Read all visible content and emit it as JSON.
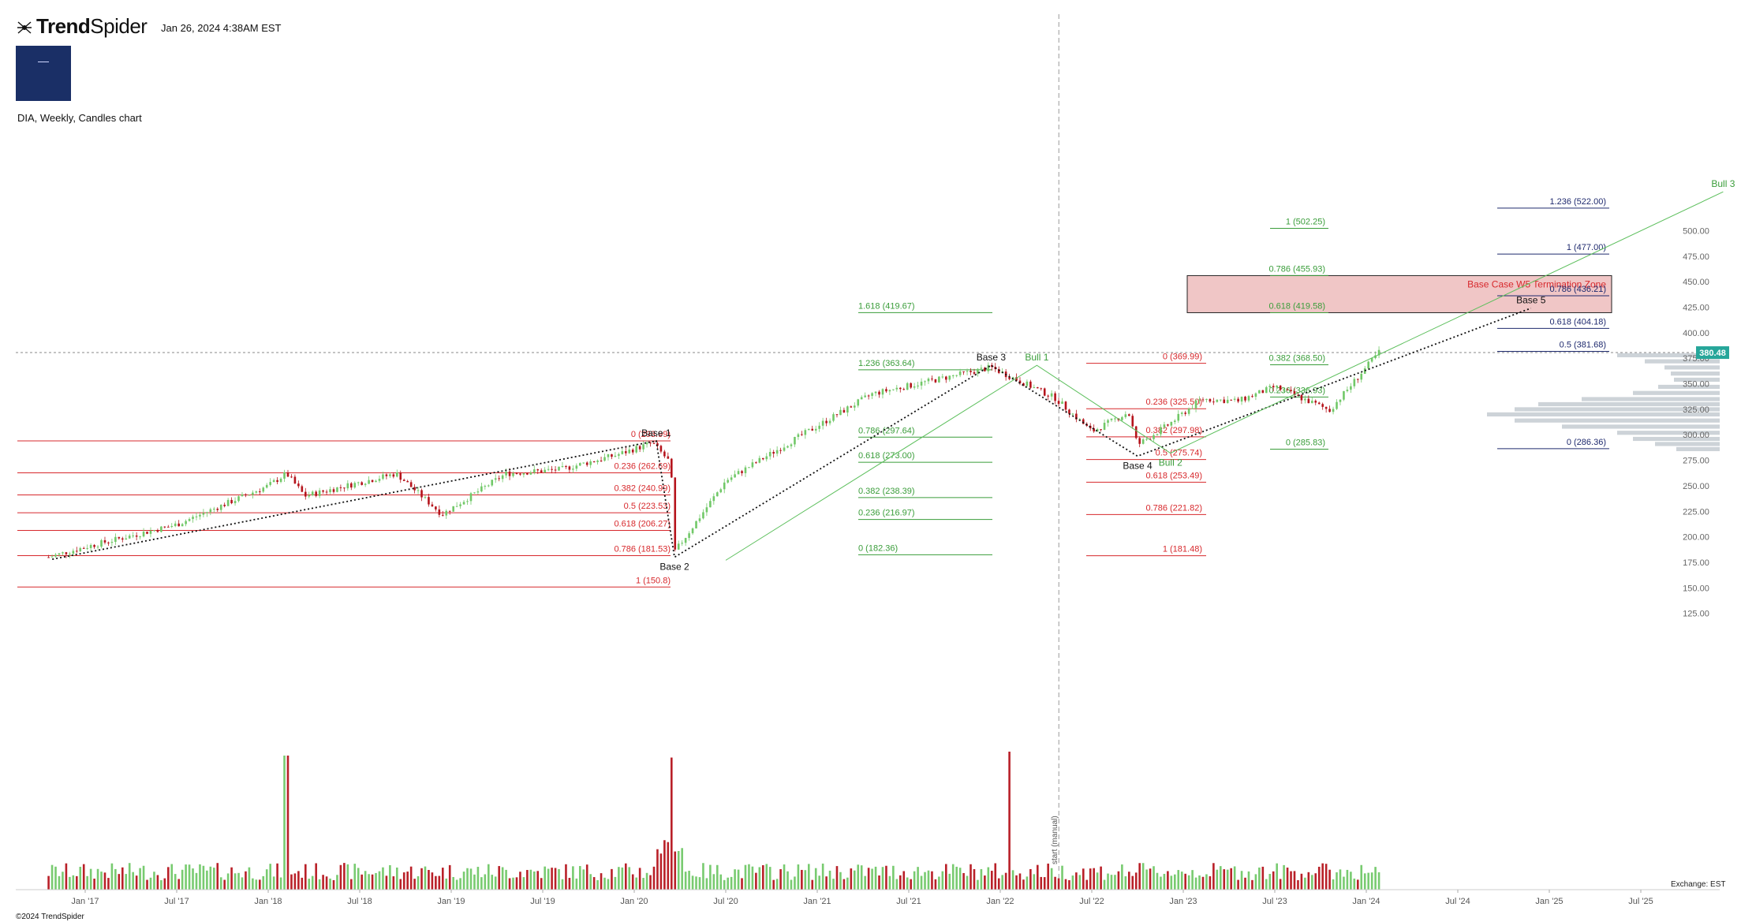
{
  "header": {
    "brand_bold": "Trend",
    "brand_rest": "Spider",
    "timestamp": "Jan 26, 2024 4:38AM EST",
    "logo_text": "",
    "symbol_line": "DIA, Weekly, Candles chart"
  },
  "footer": {
    "copyright": "©2024 TrendSpider",
    "exchange": "Exchange: EST"
  },
  "colors": {
    "up": "#71c868",
    "down": "#b5141c",
    "fib_red": "#d7282c",
    "fib_green": "#3a9d3a",
    "fib_navy": "#1f2a6e",
    "zone": "#f0c6c6",
    "price_tag": "#26a69a",
    "profile": "#cdd3d8"
  },
  "chart_data": {
    "type": "candlestick",
    "ticker": "DIA",
    "timeframe": "Weekly",
    "y_axis": {
      "min": 112,
      "max": 540,
      "ticks": [
        125,
        150,
        175,
        200,
        225,
        250,
        275,
        300,
        325,
        350,
        375,
        400,
        425,
        450,
        475,
        500
      ]
    },
    "x_axis": {
      "labels": [
        "Jan '17",
        "Jul '17",
        "Jan '18",
        "Jul '18",
        "Jan '19",
        "Jul '19",
        "Jan '20",
        "Jul '20",
        "Jan '21",
        "Jul '21",
        "Jan '22",
        "Jul '22",
        "Jan '23",
        "Jul '23",
        "Jan '24",
        "Jul '24",
        "Jan '25",
        "Jul '25"
      ]
    },
    "last_price": 380.48,
    "price_path": [
      [
        2016.8,
        180
      ],
      [
        2017.0,
        190
      ],
      [
        2017.5,
        212
      ],
      [
        2018.0,
        250
      ],
      [
        2018.1,
        262
      ],
      [
        2018.2,
        240
      ],
      [
        2018.7,
        262
      ],
      [
        2018.95,
        222
      ],
      [
        2019.3,
        262
      ],
      [
        2019.6,
        266
      ],
      [
        2019.9,
        280
      ],
      [
        2020.1,
        292
      ],
      [
        2020.2,
        272
      ],
      [
        2020.22,
        185
      ],
      [
        2020.5,
        255
      ],
      [
        2020.9,
        298
      ],
      [
        2021.3,
        340
      ],
      [
        2021.6,
        352
      ],
      [
        2021.95,
        366
      ],
      [
        2022.3,
        336
      ],
      [
        2022.5,
        303
      ],
      [
        2022.7,
        322
      ],
      [
        2022.75,
        290
      ],
      [
        2022.92,
        310
      ],
      [
        2023.1,
        335
      ],
      [
        2023.3,
        333
      ],
      [
        2023.5,
        347
      ],
      [
        2023.8,
        324
      ],
      [
        2024.07,
        381
      ]
    ],
    "volume_spikes": [
      [
        2018.1,
        "up",
        68
      ],
      [
        2020.2,
        "up",
        55
      ],
      [
        2022.05,
        "up",
        70
      ]
    ],
    "fib_red_left": [
      {
        "label": "0 (293.99)",
        "value": 293.99
      },
      {
        "label": "0.236 (262.69)",
        "value": 262.69
      },
      {
        "label": "0.382 (240.99)",
        "value": 240.99
      },
      {
        "label": "0.5 (223.53)",
        "value": 223.53
      },
      {
        "label": "0.618 (206.27)",
        "value": 206.27
      },
      {
        "label": "0.786 (181.53)",
        "value": 181.53
      },
      {
        "label": "1 (150.8)",
        "value": 150.8
      }
    ],
    "fib_green_mid": [
      {
        "label": "1.618 (419.67)",
        "value": 419.67
      },
      {
        "label": "1.236 (363.64)",
        "value": 363.64
      },
      {
        "label": "0.786 (297.64)",
        "value": 297.64
      },
      {
        "label": "0.618 (273.00)",
        "value": 273.0
      },
      {
        "label": "0.382 (238.39)",
        "value": 238.39
      },
      {
        "label": "0.236 (216.97)",
        "value": 216.97
      },
      {
        "label": "0 (182.36)",
        "value": 182.36
      }
    ],
    "fib_red_mid": [
      {
        "label": "0 (369.99)",
        "value": 369.99
      },
      {
        "label": "0.236 (325.50)",
        "value": 325.5
      },
      {
        "label": "0.382 (297.98)",
        "value": 297.98
      },
      {
        "label": "0.5 (275.74)",
        "value": 275.74
      },
      {
        "label": "0.618 (253.49)",
        "value": 253.49
      },
      {
        "label": "0.786 (221.82)",
        "value": 221.82
      },
      {
        "label": "1 (181.48)",
        "value": 181.48
      }
    ],
    "fib_green_right": [
      {
        "label": "1 (502.25)",
        "value": 502.25
      },
      {
        "label": "0.786 (455.93)",
        "value": 455.93
      },
      {
        "label": "0.618 (419.58)",
        "value": 419.58
      },
      {
        "label": "0.382 (368.50)",
        "value": 368.5
      },
      {
        "label": "0.236 (336.93)",
        "value": 336.93
      },
      {
        "label": "0 (285.83)",
        "value": 285.83
      }
    ],
    "fib_navy_right": [
      {
        "label": "1.236 (522.00)",
        "value": 522.0
      },
      {
        "label": "1 (477.00)",
        "value": 477.0
      },
      {
        "label": "0.786 (436.21)",
        "value": 436.21
      },
      {
        "label": "0.618 (404.18)",
        "value": 404.18
      },
      {
        "label": "0.5 (381.68)",
        "value": 381.68
      },
      {
        "label": "0 (286.36)",
        "value": 286.36
      }
    ],
    "zone": {
      "label": "Base Case W5 Termination Zone",
      "low": 419.58,
      "high": 455.93
    },
    "wave_labels": [
      {
        "label": "Base 1",
        "date": 2020.12,
        "price": 294
      },
      {
        "label": "Base 2",
        "date": 2020.22,
        "price": 180
      },
      {
        "label": "Base 3",
        "date": 2021.95,
        "price": 368
      },
      {
        "label": "Base 4",
        "date": 2022.75,
        "price": 279
      },
      {
        "label": "Base 5",
        "date": 2024.9,
        "price": 424
      },
      {
        "label": "Bull 1",
        "date": 2022.2,
        "price": 368
      },
      {
        "label": "Bull 2",
        "date": 2022.93,
        "price": 282
      },
      {
        "label": "Bull 3",
        "date": 2025.95,
        "price": 538
      }
    ],
    "vertical_marker": {
      "label": "start (manual)",
      "date": 2022.32
    }
  }
}
